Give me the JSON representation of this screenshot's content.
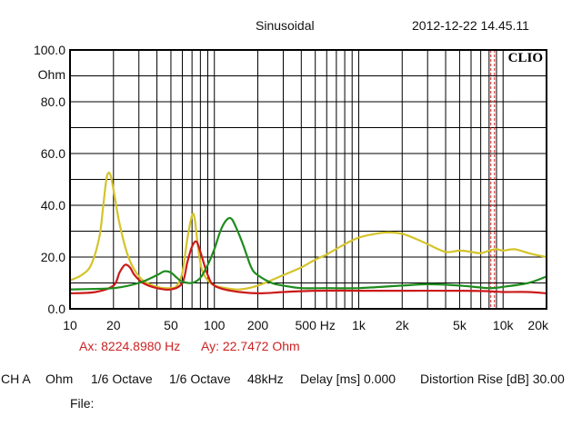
{
  "header": {
    "mode": "Sinusoidal",
    "timestamp": "2012-12-22 14.45.11"
  },
  "chart_data": {
    "type": "line",
    "x_scale": "log",
    "xlim": [
      10,
      20000
    ],
    "ylim": [
      0,
      100
    ],
    "grid": true,
    "y_unit_label": "Ohm",
    "logo_text": "CLIO",
    "x_ticks": [
      {
        "value": 10,
        "label": "10"
      },
      {
        "value": 20,
        "label": "20"
      },
      {
        "value": 50,
        "label": "50"
      },
      {
        "value": 100,
        "label": "100"
      },
      {
        "value": 200,
        "label": "200"
      },
      {
        "value": 500,
        "label": "500 Hz"
      },
      {
        "value": 1000,
        "label": "1k"
      },
      {
        "value": 2000,
        "label": "2k"
      },
      {
        "value": 5000,
        "label": "5k"
      },
      {
        "value": 10000,
        "label": "10k"
      },
      {
        "value": 20000,
        "label": "20k"
      }
    ],
    "y_ticks": [
      {
        "value": 0,
        "label": "0.0"
      },
      {
        "value": 20,
        "label": "20.0"
      },
      {
        "value": 40,
        "label": "40.0"
      },
      {
        "value": 60,
        "label": "60.0"
      },
      {
        "value": 80,
        "label": "80.0"
      },
      {
        "value": 100,
        "label": "100.0"
      }
    ],
    "cursor": {
      "x": 8224.898,
      "y": 22.7472,
      "color": "#cc2222"
    },
    "series": [
      {
        "color": "#d4c42a",
        "points": [
          [
            10,
            11
          ],
          [
            12,
            13
          ],
          [
            14,
            17
          ],
          [
            16,
            28
          ],
          [
            17,
            40
          ],
          [
            18,
            51
          ],
          [
            19,
            52
          ],
          [
            20,
            46
          ],
          [
            22,
            33
          ],
          [
            25,
            21
          ],
          [
            28,
            15
          ],
          [
            32,
            11
          ],
          [
            40,
            8.5
          ],
          [
            50,
            8
          ],
          [
            55,
            9
          ],
          [
            60,
            14
          ],
          [
            65,
            27
          ],
          [
            70,
            36
          ],
          [
            73,
            35
          ],
          [
            77,
            24
          ],
          [
            82,
            15
          ],
          [
            90,
            11
          ],
          [
            100,
            9
          ],
          [
            120,
            8
          ],
          [
            150,
            7.5
          ],
          [
            200,
            9
          ],
          [
            300,
            13
          ],
          [
            400,
            16
          ],
          [
            500,
            19
          ],
          [
            600,
            21
          ],
          [
            800,
            25
          ],
          [
            1000,
            27.5
          ],
          [
            1300,
            29
          ],
          [
            1600,
            29.5
          ],
          [
            2000,
            29
          ],
          [
            2500,
            27
          ],
          [
            3000,
            25
          ],
          [
            4000,
            22
          ],
          [
            5000,
            22.5
          ],
          [
            6000,
            22
          ],
          [
            7000,
            21.5
          ],
          [
            8000,
            22.5
          ],
          [
            9000,
            23
          ],
          [
            10000,
            22.5
          ],
          [
            12000,
            23
          ],
          [
            15000,
            21.5
          ],
          [
            18000,
            20.5
          ],
          [
            20000,
            20
          ]
        ]
      },
      {
        "color": "#cc1a1a",
        "points": [
          [
            10,
            6
          ],
          [
            15,
            6.5
          ],
          [
            20,
            9
          ],
          [
            22,
            14
          ],
          [
            24,
            17
          ],
          [
            26,
            16
          ],
          [
            28,
            13
          ],
          [
            32,
            10
          ],
          [
            40,
            8
          ],
          [
            50,
            7.5
          ],
          [
            60,
            10
          ],
          [
            65,
            18
          ],
          [
            70,
            24
          ],
          [
            75,
            26
          ],
          [
            80,
            22
          ],
          [
            90,
            13
          ],
          [
            100,
            9
          ],
          [
            130,
            7
          ],
          [
            200,
            6
          ],
          [
            300,
            6.5
          ],
          [
            500,
            7
          ],
          [
            1000,
            7
          ],
          [
            2000,
            7
          ],
          [
            5000,
            7
          ],
          [
            8000,
            6.8
          ],
          [
            10000,
            6.5
          ],
          [
            15000,
            6.5
          ],
          [
            20000,
            6
          ]
        ]
      },
      {
        "color": "#1e8c1e",
        "points": [
          [
            10,
            7.5
          ],
          [
            20,
            8
          ],
          [
            30,
            10
          ],
          [
            40,
            13
          ],
          [
            45,
            14.5
          ],
          [
            50,
            14
          ],
          [
            55,
            12
          ],
          [
            60,
            10.5
          ],
          [
            70,
            10
          ],
          [
            80,
            12
          ],
          [
            90,
            17
          ],
          [
            100,
            23
          ],
          [
            110,
            30
          ],
          [
            120,
            34
          ],
          [
            130,
            35
          ],
          [
            140,
            32
          ],
          [
            160,
            24
          ],
          [
            180,
            16
          ],
          [
            200,
            13
          ],
          [
            250,
            10
          ],
          [
            300,
            9
          ],
          [
            400,
            8
          ],
          [
            600,
            8
          ],
          [
            1000,
            8
          ],
          [
            2000,
            9
          ],
          [
            3000,
            9.5
          ],
          [
            5000,
            9
          ],
          [
            8000,
            8
          ],
          [
            10000,
            8.5
          ],
          [
            15000,
            10
          ],
          [
            20000,
            12.5
          ]
        ]
      }
    ]
  },
  "readout": {
    "ax": "Ax: 8224.8980 Hz",
    "ay": "Ay: 22.7472 Ohm"
  },
  "settings": {
    "channel": "CH A",
    "unit": "Ohm",
    "smoothing1": "1/6 Octave",
    "smoothing2": "1/6 Octave",
    "sample_rate": "48kHz",
    "delay": "Delay [ms] 0.000",
    "distortion": "Distortion Rise [dB] 30.00"
  },
  "file": {
    "label": "File:"
  }
}
